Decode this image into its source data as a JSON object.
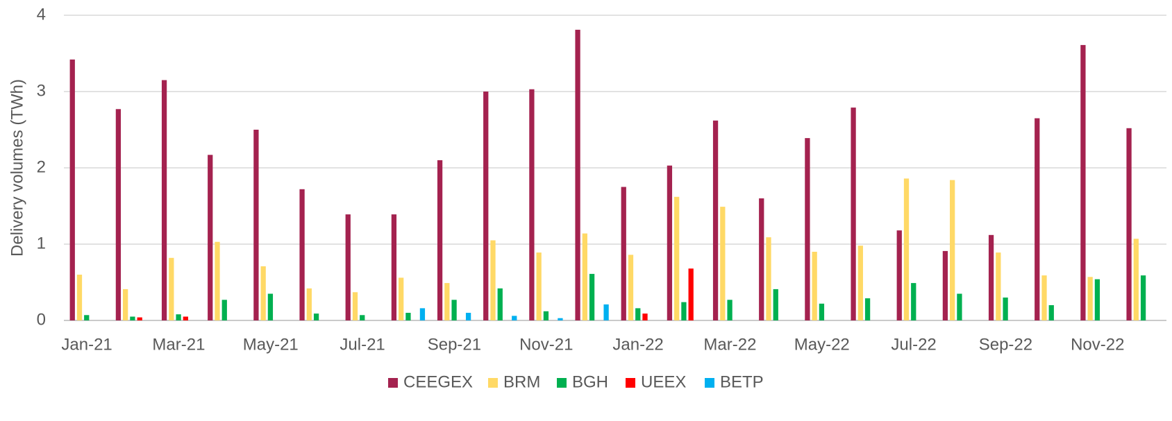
{
  "chart_data": {
    "type": "bar",
    "y_label": "Delivery volumes (TWh)",
    "categories": [
      "Jan-21",
      null,
      "Mar-21",
      null,
      "May-21",
      null,
      "Jul-21",
      null,
      "Sep-21",
      null,
      "Nov-21",
      null,
      "Jan-22",
      null,
      "Mar-22",
      null,
      "May-22",
      null,
      "Jul-22",
      null,
      "Sep-22",
      null,
      "Nov-22",
      null
    ],
    "series": [
      {
        "name": "CEEGEX",
        "color": "#a4224f",
        "values": [
          3.42,
          2.77,
          3.15,
          2.17,
          2.5,
          1.72,
          1.39,
          1.39,
          2.1,
          3.0,
          3.03,
          3.81,
          1.75,
          2.03,
          2.62,
          1.6,
          2.39,
          2.79,
          1.18,
          0.91,
          1.12,
          2.65,
          3.61,
          2.52
        ]
      },
      {
        "name": "BRM",
        "color": "#ffd966",
        "values": [
          0.6,
          0.41,
          0.82,
          1.03,
          0.71,
          0.42,
          0.37,
          0.56,
          0.49,
          1.05,
          0.89,
          1.14,
          0.86,
          1.62,
          1.49,
          1.09,
          0.9,
          0.98,
          1.86,
          1.84,
          0.89,
          0.59,
          0.57,
          1.07
        ]
      },
      {
        "name": "BGH",
        "color": "#00b050",
        "values": [
          0.07,
          0.05,
          0.08,
          0.27,
          0.35,
          0.09,
          0.07,
          0.1,
          0.27,
          0.42,
          0.12,
          0.61,
          0.16,
          0.24,
          0.27,
          0.41,
          0.22,
          0.29,
          0.49,
          0.35,
          0.3,
          0.2,
          0.54,
          0.59
        ]
      },
      {
        "name": "UEEX",
        "color": "#ff0000",
        "values": [
          0,
          0.04,
          0.05,
          0,
          0,
          0,
          0,
          0,
          0,
          0,
          0,
          0,
          0.09,
          0.68,
          0,
          0,
          0,
          0,
          0,
          0,
          0,
          0,
          0,
          0
        ]
      },
      {
        "name": "BETP",
        "color": "#00b0f0",
        "values": [
          0,
          0,
          0,
          0,
          0,
          0,
          0,
          0.16,
          0.1,
          0.06,
          0.03,
          0.21,
          0,
          0,
          0,
          0,
          0,
          0,
          0,
          0,
          0,
          0,
          0,
          0
        ]
      }
    ],
    "ylim": [
      0,
      4
    ],
    "yticks": [
      0,
      1,
      2,
      3,
      4
    ],
    "grid": true,
    "legend": "bottom"
  }
}
